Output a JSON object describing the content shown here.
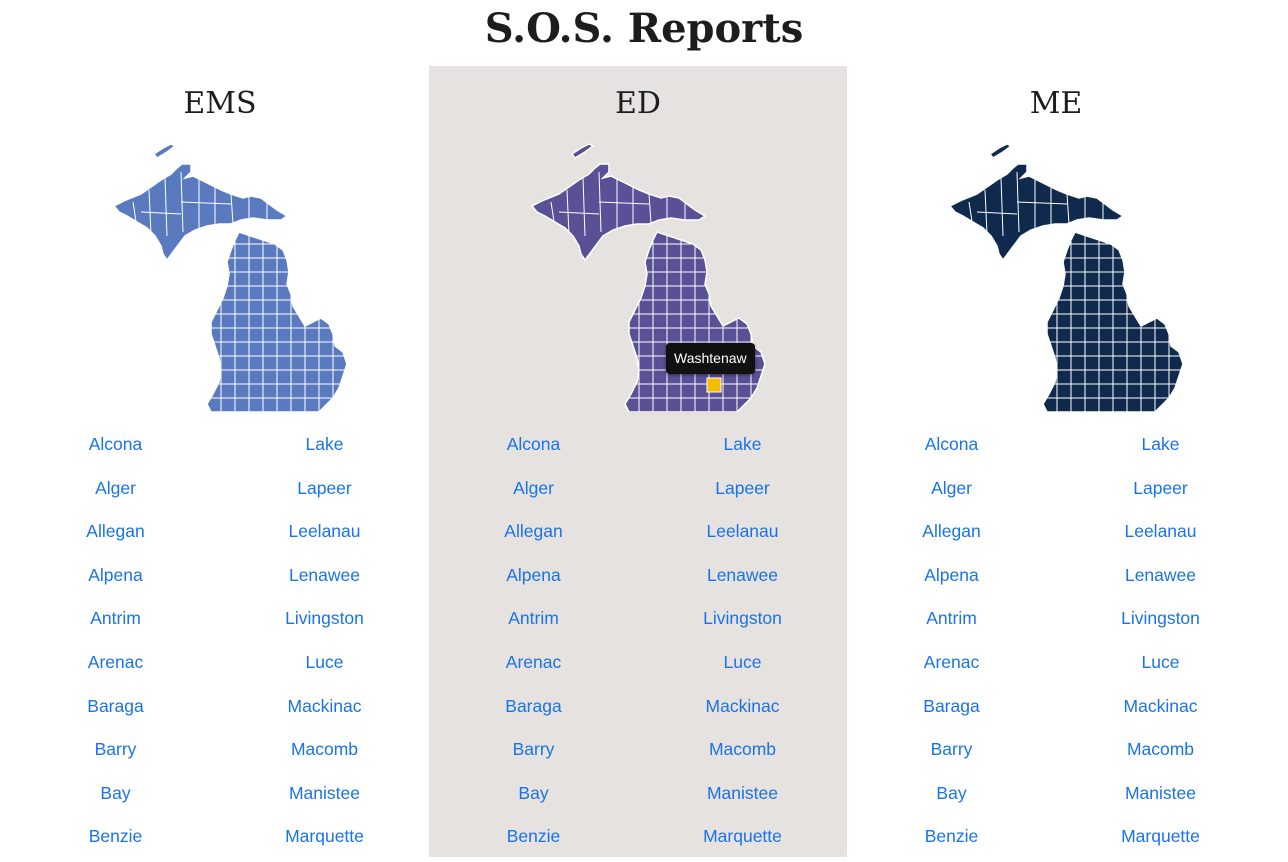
{
  "page": {
    "title": "S.O.S. Reports"
  },
  "sections": [
    {
      "heading": "EMS",
      "color": "#5a7abf"
    },
    {
      "heading": "ED",
      "color": "#5a5096",
      "highlight_color": "#f5bd00",
      "tooltip": "Washtenaw"
    },
    {
      "heading": "ME",
      "color": "#0f2a4d"
    }
  ],
  "counties_left": [
    "Alcona",
    "Alger",
    "Allegan",
    "Alpena",
    "Antrim",
    "Arenac",
    "Baraga",
    "Barry",
    "Bay",
    "Benzie"
  ],
  "counties_right": [
    "Lake",
    "Lapeer",
    "Leelanau",
    "Lenawee",
    "Livingston",
    "Luce",
    "Mackinac",
    "Macomb",
    "Manistee",
    "Marquette"
  ]
}
